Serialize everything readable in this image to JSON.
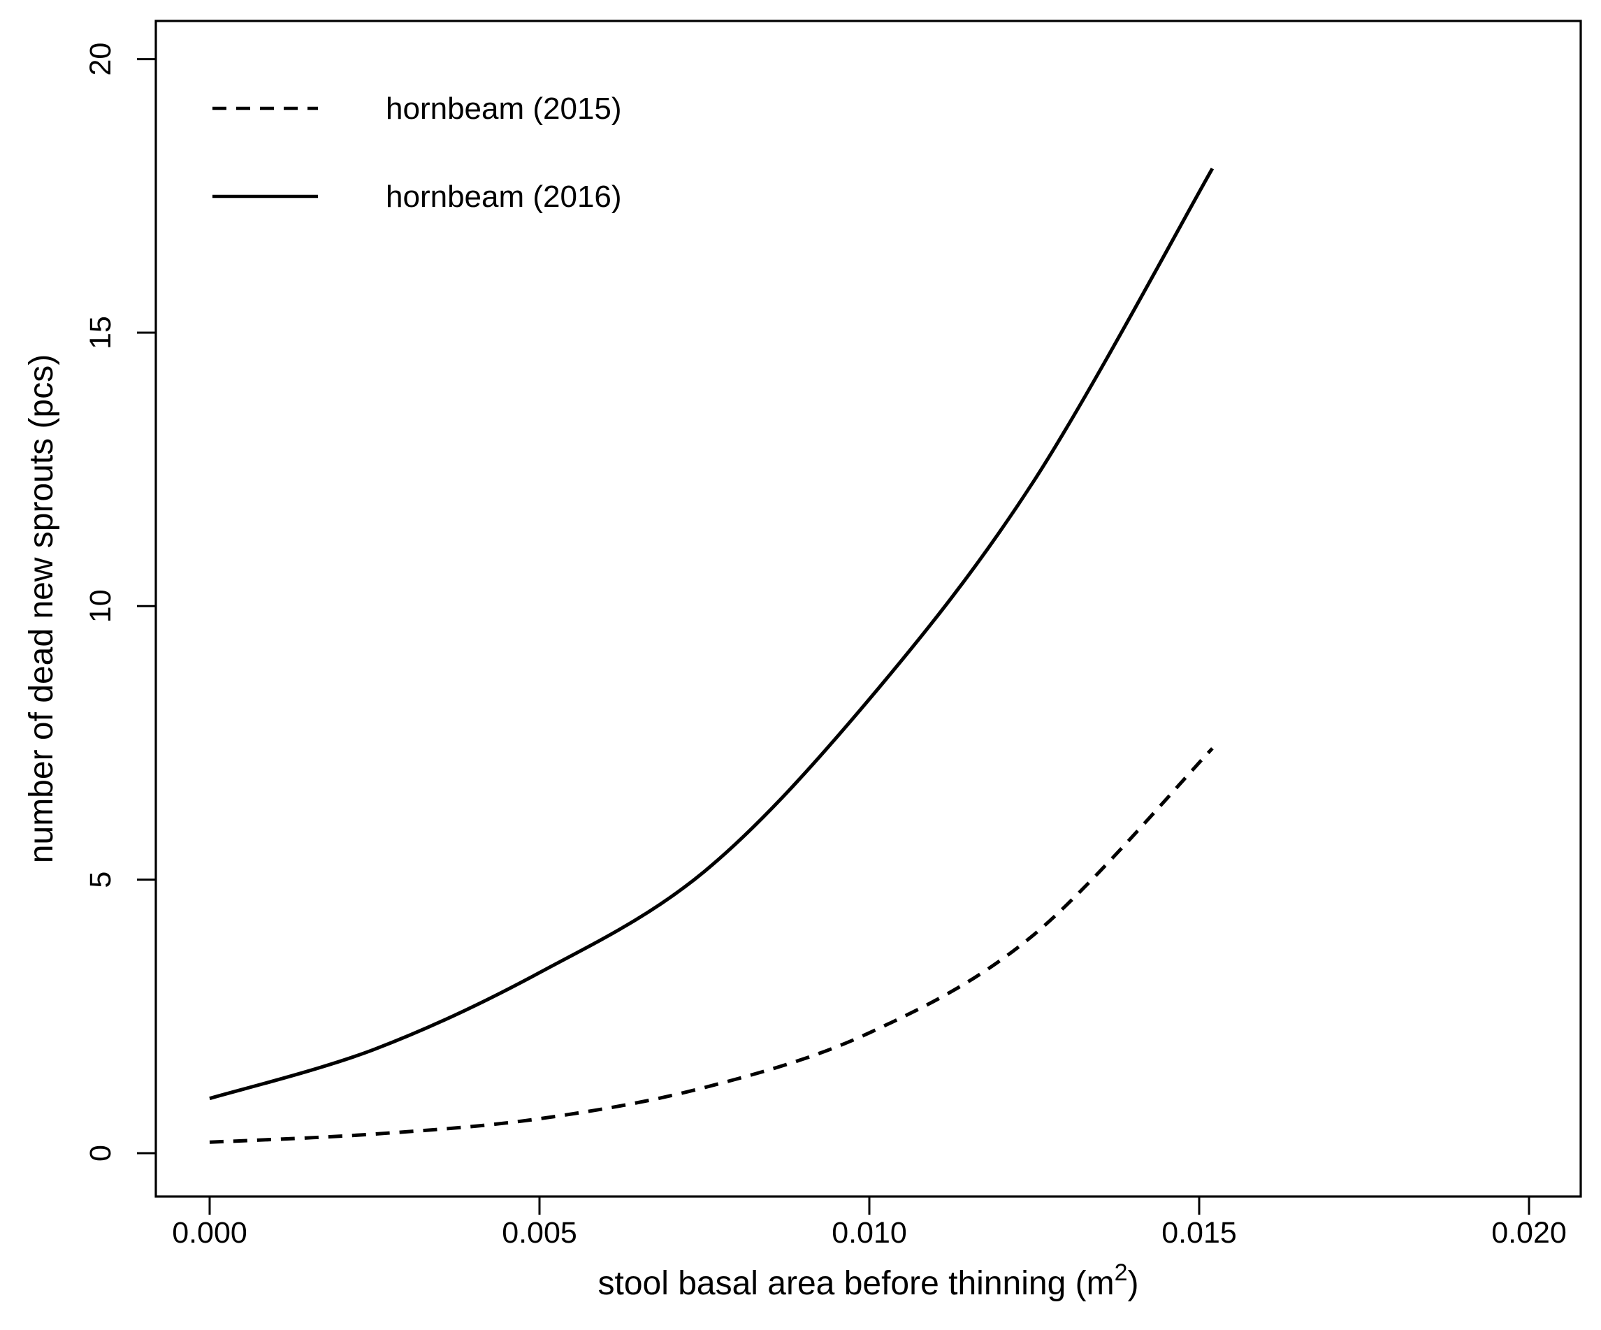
{
  "figure": {
    "background": "#ffffff",
    "foreground": "#000000"
  },
  "chart_data": {
    "type": "line",
    "title": "",
    "xlabel": "stool basal area before thinning (m²)",
    "xlabel_parts": {
      "base": "stool basal area before thinning (m",
      "superscript": "2",
      "suffix": ")"
    },
    "ylabel": "number of dead new sprouts (pcs)",
    "xlim": [
      -0.00082,
      0.02079
    ],
    "ylim": [
      -0.79,
      20.7
    ],
    "x_ticks": [
      0,
      0.005,
      0.01,
      0.015,
      0.02
    ],
    "x_tick_labels": [
      "0.000",
      "0.005",
      "0.010",
      "0.015",
      "0.020"
    ],
    "y_ticks": [
      0,
      5,
      10,
      15,
      20
    ],
    "y_tick_labels": [
      "0",
      "5",
      "10",
      "15",
      "20"
    ],
    "grid": false,
    "line_color": "#000000",
    "legend": {
      "position": "top-left-inside",
      "entries": [
        {
          "label": "hornbeam (2015)",
          "line_style": "dashed"
        },
        {
          "label": "hornbeam (2016)",
          "line_style": "solid"
        }
      ]
    },
    "series": [
      {
        "name": "hornbeam (2015)",
        "line_style": "dashed",
        "color": "#000000",
        "points": [
          [
            0,
            0.2
          ],
          [
            0.0025,
            0.35
          ],
          [
            0.005,
            0.63
          ],
          [
            0.0075,
            1.2
          ],
          [
            0.01,
            2.2
          ],
          [
            0.0125,
            4.0
          ],
          [
            0.0152,
            7.4
          ]
        ]
      },
      {
        "name": "hornbeam (2016)",
        "line_style": "solid",
        "color": "#000000",
        "points": [
          [
            0,
            1.0
          ],
          [
            0.0025,
            1.9
          ],
          [
            0.005,
            3.3
          ],
          [
            0.0075,
            5.15
          ],
          [
            0.01,
            8.3
          ],
          [
            0.0125,
            12.3
          ],
          [
            0.0152,
            18.0
          ]
        ]
      }
    ]
  }
}
